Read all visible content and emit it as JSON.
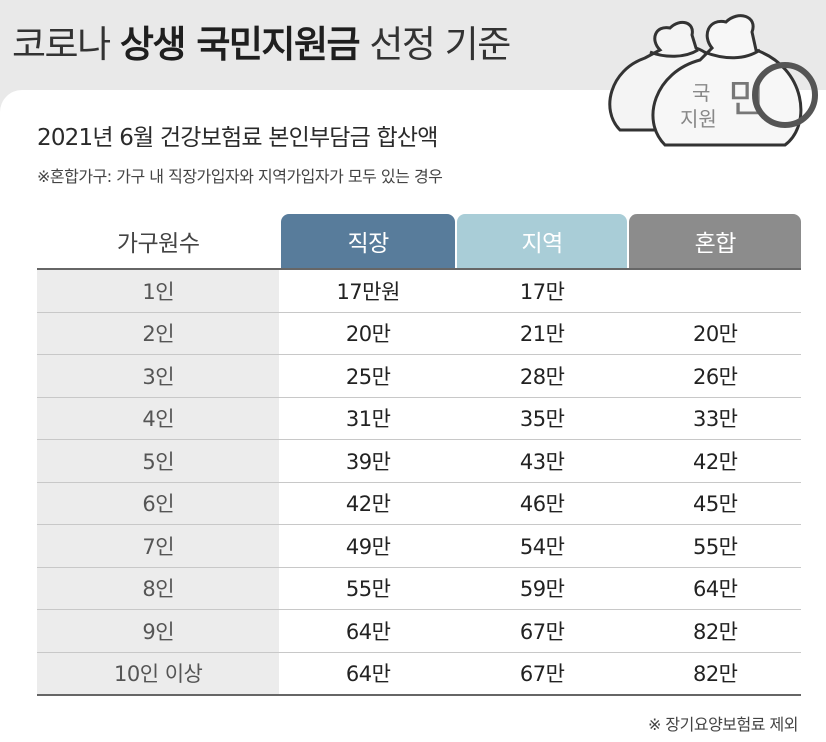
{
  "header": {
    "title_prefix": "코로나",
    "title_bold": "상생 국민지원금",
    "title_suffix": "선정 기준",
    "illustration_text_1": "국",
    "illustration_text_2": "민",
    "illustration_text_3": "지원"
  },
  "subtitle": "2021년 6월 건강보험료 본인부담금 합산액",
  "note": "※혼합가구: 가구 내 직장가입자와 지역가입자가 모두 있는 경우",
  "footnote": "※ 장기요양보험료 제외",
  "colors": {
    "header_work": "#587c9b",
    "header_region": "#a9cdd7",
    "header_mixed": "#8c8c8c",
    "first_col_bg": "#ececec",
    "page_bg": "#e9e9e9"
  },
  "table": {
    "headers": [
      "가구원수",
      "직장",
      "지역",
      "혼합"
    ],
    "rows": [
      [
        "1인",
        "17만원",
        "17만",
        ""
      ],
      [
        "2인",
        "20만",
        "21만",
        "20만"
      ],
      [
        "3인",
        "25만",
        "28만",
        "26만"
      ],
      [
        "4인",
        "31만",
        "35만",
        "33만"
      ],
      [
        "5인",
        "39만",
        "43만",
        "42만"
      ],
      [
        "6인",
        "42만",
        "46만",
        "45만"
      ],
      [
        "7인",
        "49만",
        "54만",
        "55만"
      ],
      [
        "8인",
        "55만",
        "59만",
        "64만"
      ],
      [
        "9인",
        "64만",
        "67만",
        "82만"
      ],
      [
        "10인 이상",
        "64만",
        "67만",
        "82만"
      ]
    ]
  }
}
